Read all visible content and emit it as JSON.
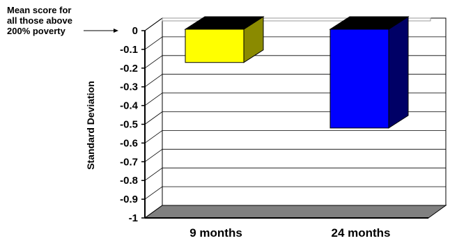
{
  "chart_data": {
    "type": "bar",
    "categories": [
      "9 months",
      "24 months"
    ],
    "values": [
      -0.17,
      -0.52
    ],
    "ylabel": "Standard Deviation",
    "xlabel": "",
    "ylim": [
      -1,
      0
    ],
    "yticks": [
      "0",
      "-0.1",
      "-0.2",
      "-0.3",
      "-0.4",
      "-0.5",
      "-0.6",
      "-0.7",
      "-0.8",
      "-0.9",
      "-1"
    ],
    "grid": true,
    "bar_colors": [
      "#ffff00",
      "#0000ff"
    ],
    "bar_side_colors": [
      "#8a8a00",
      "#000066"
    ],
    "annotation": {
      "lines": [
        "Mean score for",
        "all those above",
        "200% poverty"
      ]
    }
  }
}
